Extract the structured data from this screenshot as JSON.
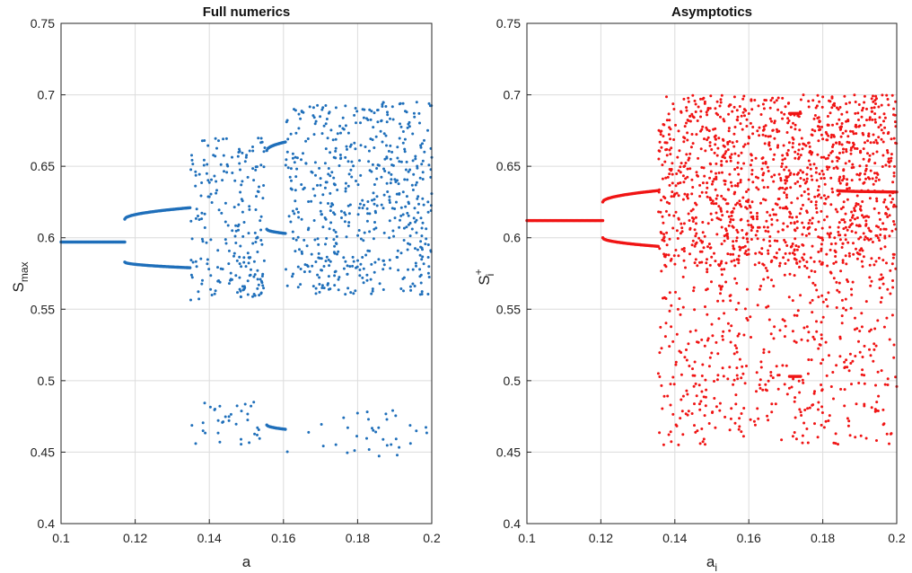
{
  "chart_data": [
    {
      "type": "scatter",
      "title": "Full numerics",
      "xlabel": "a",
      "ylabel_base": "S",
      "ylabel_sub": "max",
      "xlim": [
        0.1,
        0.2
      ],
      "ylim": [
        0.4,
        0.75
      ],
      "xticks": [
        "0.1",
        "0.12",
        "0.14",
        "0.16",
        "0.18",
        "0.2"
      ],
      "yticks": [
        "0.4",
        "0.45",
        "0.5",
        "0.55",
        "0.6",
        "0.65",
        "0.7",
        "0.75"
      ],
      "grid": true,
      "color": "#1f6fba",
      "branches": [
        {
          "x": [
            0.1,
            0.1172
          ],
          "y": [
            0.597,
            0.597
          ]
        },
        {
          "x": [
            0.1172,
            0.1348
          ],
          "y": [
            0.613,
            0.621
          ]
        },
        {
          "x": [
            0.1172,
            0.1348
          ],
          "y": [
            0.583,
            0.579
          ]
        },
        {
          "x": [
            0.1555,
            0.1605
          ],
          "y": [
            0.661,
            0.667
          ]
        },
        {
          "x": [
            0.1555,
            0.1605
          ],
          "y": [
            0.606,
            0.603
          ]
        },
        {
          "x": [
            0.1555,
            0.1605
          ],
          "y": [
            0.469,
            0.466
          ]
        }
      ],
      "bands": [
        {
          "x": [
            0.1348,
            0.155
          ],
          "y": [
            0.555,
            0.67
          ],
          "n": 220
        },
        {
          "x": [
            0.1605,
            0.2
          ],
          "y": [
            0.56,
            0.695
          ],
          "n": 560
        },
        {
          "x": [
            0.1348,
            0.155
          ],
          "y": [
            0.455,
            0.485
          ],
          "n": 35
        },
        {
          "x": [
            0.1605,
            0.2
          ],
          "y": [
            0.447,
            0.48
          ],
          "n": 35
        }
      ]
    },
    {
      "type": "scatter",
      "title": "Asymptotics",
      "xlabel_base": "a",
      "xlabel_sub": "i",
      "ylabel_base": "S",
      "ylabel_sub": "i",
      "ylabel_sup": "+",
      "xlim": [
        0.1,
        0.2
      ],
      "ylim": [
        0.4,
        0.75
      ],
      "xticks": [
        "0.1",
        "0.12",
        "0.14",
        "0.16",
        "0.18",
        "0.2"
      ],
      "yticks": [
        "0.4",
        "0.45",
        "0.5",
        "0.55",
        "0.6",
        "0.65",
        "0.7",
        "0.75"
      ],
      "grid": true,
      "color": "#f01414",
      "branches": [
        {
          "x": [
            0.1,
            0.1205
          ],
          "y": [
            0.612,
            0.612
          ]
        },
        {
          "x": [
            0.1205,
            0.1355
          ],
          "y": [
            0.625,
            0.633
          ]
        },
        {
          "x": [
            0.1205,
            0.1355
          ],
          "y": [
            0.6,
            0.594
          ]
        },
        {
          "x": [
            0.171,
            0.174
          ],
          "y": [
            0.687,
            0.687
          ]
        },
        {
          "x": [
            0.171,
            0.174
          ],
          "y": [
            0.503,
            0.503
          ]
        },
        {
          "x": [
            0.184,
            0.2
          ],
          "y": [
            0.633,
            0.632
          ]
        }
      ],
      "bands": [
        {
          "x": [
            0.1355,
            0.2
          ],
          "y": [
            0.58,
            0.7
          ],
          "n": 1300
        },
        {
          "x": [
            0.1355,
            0.2
          ],
          "y": [
            0.455,
            0.58
          ],
          "n": 480
        }
      ]
    }
  ]
}
